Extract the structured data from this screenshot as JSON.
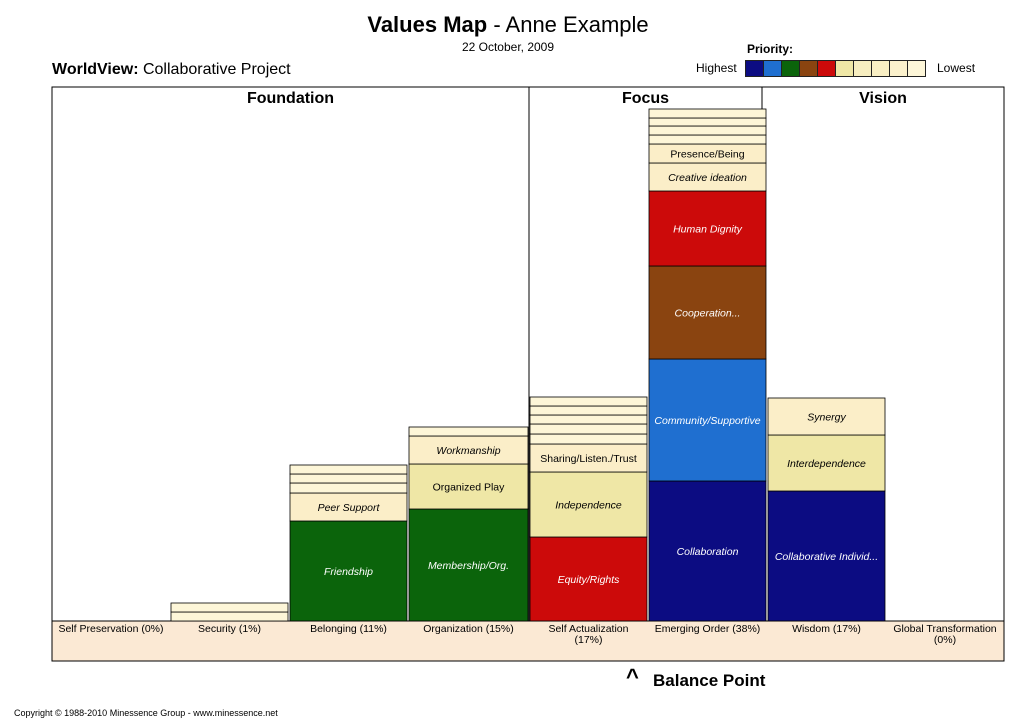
{
  "header": {
    "title_bold": "Values Map",
    "title_rest": " - Anne Example",
    "date": "22 October, 2009",
    "worldview_label": "WorldView:",
    "worldview_value": " Collaborative Project"
  },
  "legend": {
    "title": "Priority:",
    "highest": "Highest",
    "lowest": "Lowest",
    "colors": [
      "#0c0c82",
      "#1f6fd0",
      "#0b640b",
      "#8a4410",
      "#cc0a0a",
      "#efe7a6",
      "#f7eec0",
      "#f9efc4",
      "#fbf1cc",
      "#fdf6d8"
    ]
  },
  "chart_data": {
    "type": "bar",
    "stacked": true,
    "sections": [
      "Foundation",
      "Focus",
      "Vision"
    ],
    "categories": [
      {
        "label": "Self Preservation (0%)",
        "section": "Foundation",
        "percent": 0,
        "segments": []
      },
      {
        "label": "Security  (1%)",
        "section": "Foundation",
        "percent": 1,
        "segments": [
          {
            "name": "",
            "color": "#fdf6d8"
          },
          {
            "name": "",
            "color": "#fdf6d8"
          }
        ]
      },
      {
        "label": "Belonging (11%)",
        "section": "Foundation",
        "percent": 11,
        "segments": [
          {
            "name": "Friendship",
            "color": "#0b640b",
            "value": 100
          },
          {
            "name": "Peer Support",
            "color": "#fbeec8",
            "value": 28
          },
          {
            "name": "",
            "color": "#fdf6d8",
            "value": 10
          },
          {
            "name": "",
            "color": "#fdf6d8",
            "value": 9
          },
          {
            "name": "",
            "color": "#fdf6d8",
            "value": 9
          }
        ]
      },
      {
        "label": "Organization (15%)",
        "section": "Foundation",
        "percent": 15,
        "segments": [
          {
            "name": "Membership/Org.",
            "color": "#0b640b",
            "value": 112
          },
          {
            "name": "Organized Play",
            "color": "#efe7a6",
            "value": 45
          },
          {
            "name": "Workmanship",
            "color": "#fbeec8",
            "value": 28
          },
          {
            "name": "",
            "color": "#fdf6d8",
            "value": 9
          }
        ]
      },
      {
        "label": "Self Actualization\n(17%)",
        "section": "Focus",
        "percent": 17,
        "segments": [
          {
            "name": "Equity/Rights",
            "color": "#cc0a0a",
            "value": 84
          },
          {
            "name": "Independence",
            "color": "#efe7a6",
            "value": 65
          },
          {
            "name": "Sharing/Listen./Trust",
            "color": "#fbeec8",
            "value": 28
          },
          {
            "name": "",
            "color": "#fdf6d8",
            "value": 10
          },
          {
            "name": "",
            "color": "#fdf6d8",
            "value": 10
          },
          {
            "name": "",
            "color": "#fdf6d8",
            "value": 9
          },
          {
            "name": "",
            "color": "#fdf6d8",
            "value": 9
          },
          {
            "name": "",
            "color": "#fdf6d8",
            "value": 9
          }
        ]
      },
      {
        "label": "Emerging Order (38%)",
        "section": "Focus",
        "percent": 38,
        "segments": [
          {
            "name": "Collaboration",
            "color": "#0c0c82",
            "value": 140
          },
          {
            "name": "Community/Supportive",
            "color": "#1f6fd0",
            "value": 122
          },
          {
            "name": "Cooperation...",
            "color": "#8a4410",
            "value": 93
          },
          {
            "name": "Human Dignity",
            "color": "#cc0a0a",
            "value": 75
          },
          {
            "name": "Creative ideation",
            "color": "#fbeec8",
            "value": 28
          },
          {
            "name": "Presence/Being",
            "color": "#fbeec8",
            "value": 19
          },
          {
            "name": "",
            "color": "#fdf6d8",
            "value": 9
          },
          {
            "name": "",
            "color": "#fdf6d8",
            "value": 9
          },
          {
            "name": "",
            "color": "#fdf6d8",
            "value": 8
          },
          {
            "name": "",
            "color": "#fdf6d8",
            "value": 9
          }
        ]
      },
      {
        "label": "Wisdom  (17%)",
        "section": "Vision",
        "percent": 17,
        "segments": [
          {
            "name": "Collaborative Individ...",
            "color": "#0c0c82",
            "value": 130
          },
          {
            "name": "Interdependence",
            "color": "#efe7a6",
            "value": 56
          },
          {
            "name": "Synergy",
            "color": "#fbeec8",
            "value": 37
          }
        ]
      },
      {
        "label": "Global Transformation\n(0%)",
        "section": "Vision",
        "percent": 0,
        "segments": []
      }
    ]
  },
  "balance": {
    "mark": "^",
    "label": "Balance Point"
  },
  "footer": {
    "copyright": "Copyright © 1988-2010 Minessence Group - www.minessence.net"
  }
}
